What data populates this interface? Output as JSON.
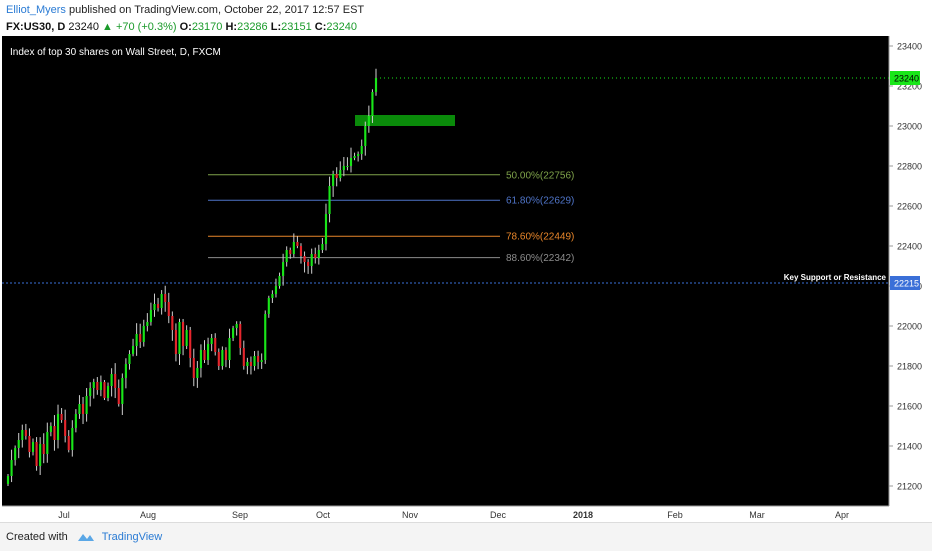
{
  "header": {
    "author": "Elliot_Myers",
    "published": "published on TradingView.com, October 22, 2017 12:57 EST",
    "symbol": "FX:US30, D",
    "last": "23240",
    "change": "+70 (+0.3%)",
    "o_label": "O:",
    "o_val": "23170",
    "h_label": "H:",
    "h_val": "23286",
    "l_label": "L:",
    "l_val": "23151",
    "c_label": "C:",
    "c_val": "23240"
  },
  "footer": {
    "created_with": "Created with",
    "brand": "TradingView"
  },
  "colors": {
    "up": "#19e619",
    "down": "#e6262d",
    "background": "#000000",
    "zone": "#0a8a0a",
    "support": "#3a6fd8"
  },
  "chart_data": {
    "type": "candlestick",
    "title": "Index of top 30 shares on Wall Street, D, FXCM",
    "y_axis": {
      "ticks": [
        21200,
        21400,
        21600,
        21800,
        22000,
        22200,
        22400,
        22600,
        22800,
        23000,
        23200,
        23400
      ],
      "ylim": [
        21100,
        23450
      ],
      "side": "right"
    },
    "x_axis": {
      "ticks": [
        "Jul",
        "Aug",
        "Sep",
        "Oct",
        "Nov",
        "Dec",
        "2018",
        "Feb",
        "Mar",
        "Apr"
      ],
      "bold_ticks": [
        "2018"
      ]
    },
    "current_price": {
      "value": 23240,
      "label": "23240"
    },
    "fib_levels": [
      {
        "label": "50.00%(22756)",
        "value": 22756,
        "color": "#7fa34a"
      },
      {
        "label": "61.80%(22629)",
        "value": 22629,
        "color": "#4f74c8"
      },
      {
        "label": "78.60%(22449)",
        "value": 22449,
        "color": "#e8862a"
      },
      {
        "label": "88.60%(22342)",
        "value": 22342,
        "color": "#8c8c8c"
      }
    ],
    "support": {
      "value": 22215,
      "label": "Key Support or Resistance",
      "price_label": "22215"
    },
    "zone": {
      "low": 23000,
      "high": 23055
    },
    "closes": [
      21250,
      21330,
      21390,
      21430,
      21480,
      21450,
      21370,
      21420,
      21300,
      21410,
      21360,
      21470,
      21500,
      21430,
      21560,
      21530,
      21450,
      21380,
      21490,
      21560,
      21610,
      21560,
      21650,
      21690,
      21720,
      21680,
      21720,
      21640,
      21700,
      21760,
      21690,
      21610,
      21740,
      21810,
      21860,
      21900,
      21960,
      21920,
      22000,
      22020,
      22080,
      22110,
      22090,
      22160,
      22120,
      22050,
      21980,
      21860,
      22020,
      21900,
      21980,
      21840,
      21740,
      21790,
      21880,
      21830,
      21910,
      21940,
      21870,
      21800,
      21880,
      21830,
      21940,
      21990,
      22010,
      21890,
      21800,
      21820,
      21800,
      21850,
      21820,
      21830,
      22060,
      22140,
      22160,
      22200,
      22250,
      22320,
      22380,
      22360,
      22420,
      22400,
      22350,
      22320,
      22300,
      22360,
      22340,
      22380,
      22410,
      22560,
      22700,
      22760,
      22740,
      22780,
      22800,
      22800,
      22840,
      22850,
      22860,
      22900,
      23000,
      23050,
      23170,
      23240
    ],
    "last_bar": {
      "open": 23170,
      "high": 23286,
      "low": 23151,
      "close": 23240
    }
  }
}
